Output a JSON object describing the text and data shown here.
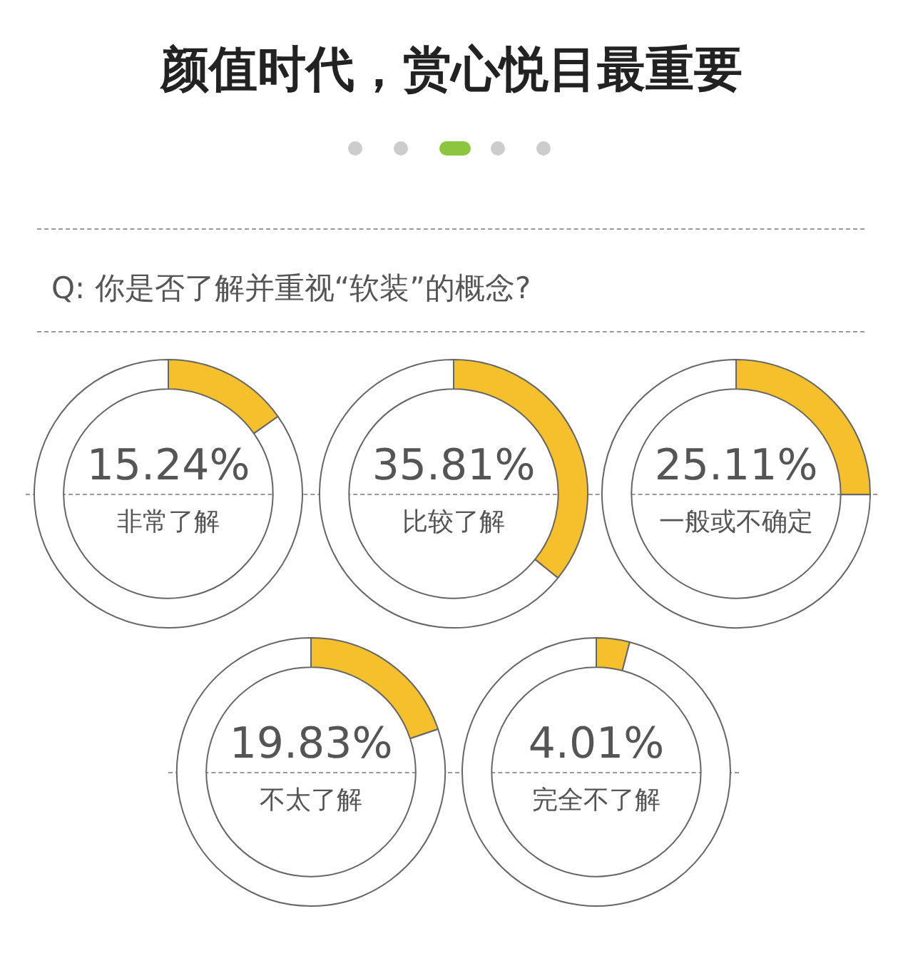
{
  "chart_data": [
    {
      "type": "donut",
      "title": "颜值时代，赏心悦目最重要",
      "subtitle": "Q: 你是否了解并重视“软装”的概念?",
      "categories": [
        "非常了解",
        null
      ],
      "values": [
        15.24,
        84.76
      ],
      "colors": [
        "#f5c02c",
        "#ffffff"
      ],
      "value_labels": [
        "15.24%",
        null
      ]
    },
    {
      "type": "donut",
      "categories": [
        "比较了解",
        null
      ],
      "values": [
        35.81,
        64.19
      ],
      "colors": [
        "#f5c02c",
        "#ffffff"
      ],
      "value_labels": [
        "35.81%",
        null
      ]
    },
    {
      "type": "donut",
      "categories": [
        "一般或不确定",
        null
      ],
      "values": [
        25.11,
        74.89
      ],
      "colors": [
        "#f5c02c",
        "#ffffff"
      ],
      "value_labels": [
        "25.11%",
        null
      ]
    },
    {
      "type": "donut",
      "categories": [
        "不太了解",
        null
      ],
      "values": [
        19.83,
        80.17
      ],
      "colors": [
        "#f5c02c",
        "#ffffff"
      ],
      "value_labels": [
        "19.83%",
        null
      ]
    },
    {
      "type": "donut",
      "categories": [
        "完全不了解",
        null
      ],
      "values": [
        4.01,
        95.99
      ],
      "colors": [
        "#f5c02c",
        "#ffffff"
      ],
      "value_labels": [
        "4.01%",
        null
      ]
    }
  ]
}
